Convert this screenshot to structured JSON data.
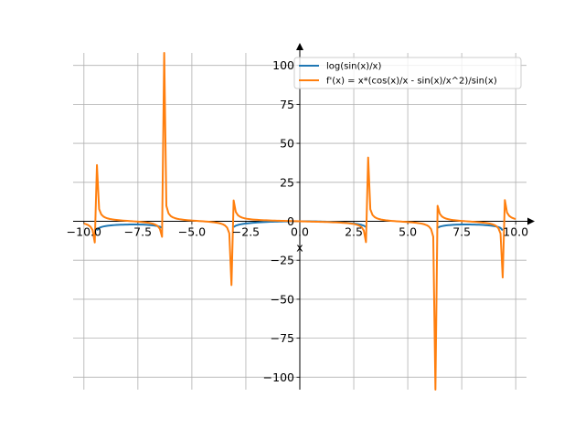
{
  "chart_data": {
    "type": "line",
    "xlabel": "x",
    "ylabel": "",
    "xlim": [
      -10.5,
      10.5
    ],
    "ylim": [
      -108,
      108
    ],
    "grid": true,
    "legend_position": "top-right",
    "x_ticks": [
      -10,
      -7.5,
      -5,
      -2.5,
      0,
      2.5,
      5,
      7.5,
      10
    ],
    "x_tick_labels": [
      "−10.0",
      "−7.5",
      "−5.0",
      "−2.5",
      "0.0",
      "2.5",
      "5.0",
      "7.5",
      "10.0"
    ],
    "y_ticks": [
      100,
      75,
      50,
      25,
      0,
      -25,
      -50,
      -75,
      -100
    ],
    "y_tick_labels": [
      "100",
      "75",
      "50",
      "25",
      "0",
      "−25",
      "−50",
      "−75",
      "−100"
    ],
    "series": [
      {
        "name": "log(sin(x)/x)",
        "color": "#1f77b4",
        "x_range": [
          -10,
          10
        ],
        "samples": 200
      },
      {
        "name": "f'(x) = x*(cos(x)/x - sin(x)/x^2)/sin(x)",
        "color": "#ff7f0e",
        "x_range": [
          -10,
          10
        ],
        "samples": 200
      }
    ]
  }
}
